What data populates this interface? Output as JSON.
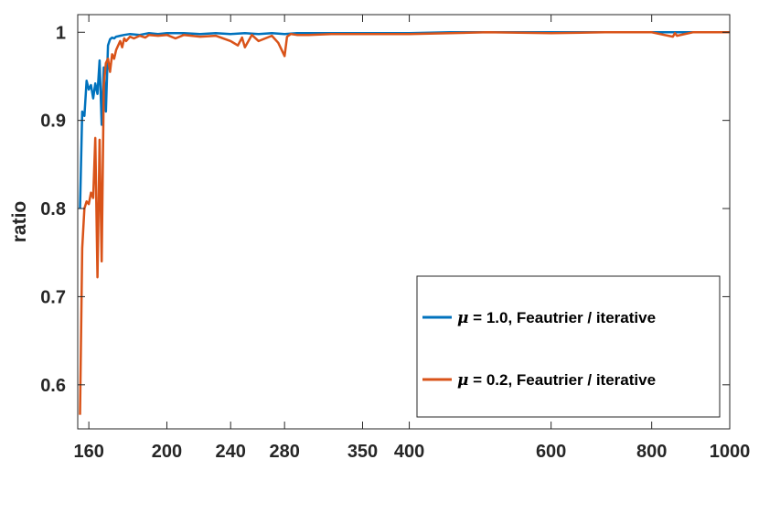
{
  "chart_data": {
    "type": "line",
    "xlabel": "",
    "ylabel": "ratio",
    "x_scale": "log",
    "xlim": [
      155,
      1000
    ],
    "ylim": [
      0.55,
      1.02
    ],
    "x_ticks": [
      160,
      200,
      240,
      280,
      350,
      400,
      600,
      800,
      1000
    ],
    "x_tick_labels": [
      "160",
      "200",
      "240",
      "280",
      "350",
      "400",
      "600",
      "800",
      "1000"
    ],
    "y_ticks": [
      0.6,
      0.7,
      0.8,
      0.9,
      1.0
    ],
    "y_tick_labels": [
      "0.6",
      "0.7",
      "0.8",
      "0.9",
      "1"
    ],
    "grid": false,
    "legend_position": "bottom-right",
    "series": [
      {
        "name": "μ = 1.0, Feautrier / iterative",
        "legend_mu": "μ",
        "legend_rest": " = 1.0, Feautrier / iterative",
        "color": "#0072BD",
        "x": [
          156,
          157,
          158,
          159,
          160,
          161,
          162,
          163,
          164,
          165,
          166,
          167,
          168,
          169,
          170,
          171,
          172,
          173,
          175,
          177,
          180,
          185,
          190,
          195,
          200,
          210,
          220,
          230,
          240,
          250,
          260,
          270,
          280,
          290,
          300,
          320,
          350,
          380,
          400,
          450,
          500,
          600,
          700,
          800,
          900,
          1000
        ],
        "y": [
          0.8,
          0.91,
          0.905,
          0.945,
          0.935,
          0.94,
          0.925,
          0.942,
          0.93,
          0.968,
          0.895,
          0.96,
          0.91,
          0.985,
          0.992,
          0.994,
          0.993,
          0.995,
          0.996,
          0.997,
          0.998,
          0.997,
          0.999,
          0.998,
          0.999,
          0.999,
          0.998,
          0.999,
          0.998,
          0.999,
          0.998,
          0.999,
          0.998,
          0.999,
          0.999,
          0.999,
          0.999,
          0.999,
          0.999,
          1.0,
          1.0,
          1.0,
          1.0,
          1.0,
          1.0,
          1.0
        ]
      },
      {
        "name": "μ = 0.2, Feautrier / iterative",
        "legend_mu": "μ",
        "legend_rest": " = 0.2, Feautrier / iterative",
        "color": "#D95319",
        "x": [
          156,
          157,
          158,
          159,
          160,
          161,
          162,
          163,
          164,
          165,
          166,
          167,
          168,
          169,
          170,
          171,
          172,
          173,
          174,
          175,
          176,
          177,
          178,
          180,
          182,
          185,
          188,
          190,
          195,
          200,
          205,
          210,
          220,
          230,
          240,
          245,
          248,
          250,
          255,
          260,
          270,
          275,
          280,
          282,
          285,
          290,
          300,
          320,
          350,
          380,
          400,
          450,
          500,
          600,
          700,
          800,
          850,
          855,
          860,
          900,
          1000
        ],
        "y": [
          0.566,
          0.755,
          0.8,
          0.808,
          0.805,
          0.818,
          0.812,
          0.88,
          0.722,
          0.878,
          0.74,
          0.94,
          0.965,
          0.97,
          0.955,
          0.975,
          0.97,
          0.98,
          0.985,
          0.99,
          0.983,
          0.993,
          0.99,
          0.995,
          0.993,
          0.996,
          0.994,
          0.997,
          0.996,
          0.997,
          0.993,
          0.997,
          0.995,
          0.996,
          0.99,
          0.985,
          0.994,
          0.983,
          0.997,
          0.99,
          0.996,
          0.988,
          0.973,
          0.995,
          0.998,
          0.997,
          0.997,
          0.998,
          0.998,
          0.998,
          0.998,
          0.999,
          1.0,
          0.999,
          1.0,
          1.0,
          0.995,
          0.999,
          0.996,
          1.0,
          1.0
        ]
      }
    ]
  }
}
